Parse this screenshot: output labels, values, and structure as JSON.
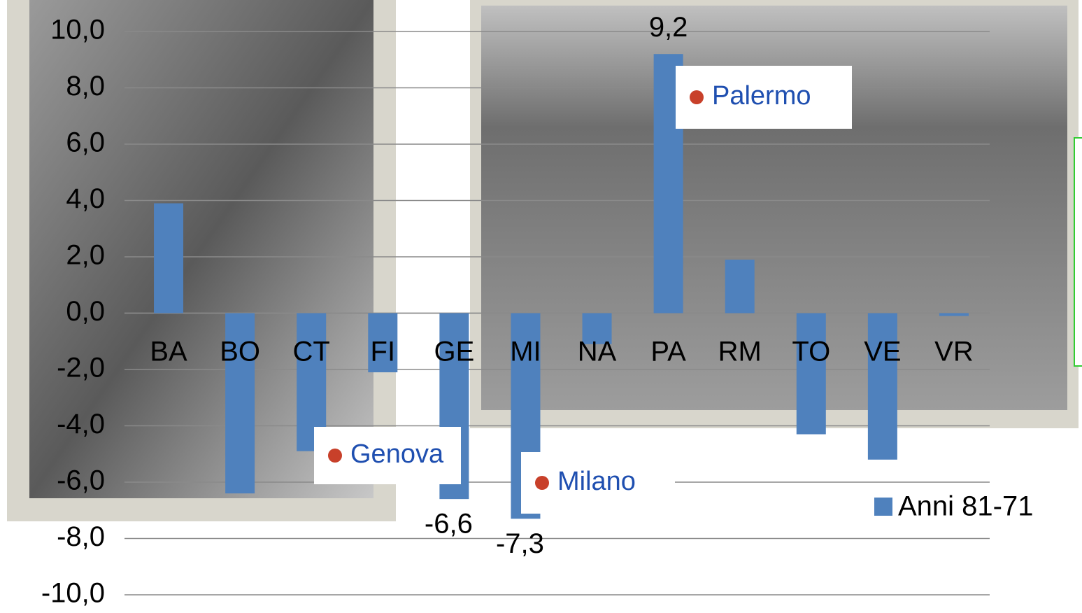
{
  "chart_data": {
    "type": "bar",
    "categories": [
      "BA",
      "BO",
      "CT",
      "FI",
      "GE",
      "MI",
      "NA",
      "PA",
      "RM",
      "TO",
      "VE",
      "VR"
    ],
    "series": [
      {
        "name": "Anni 81-71",
        "color": "#4f81bd",
        "values": [
          3.9,
          -6.4,
          -4.9,
          -2.1,
          -6.6,
          -7.3,
          -1.1,
          9.2,
          1.9,
          -4.3,
          -5.2,
          -0.1
        ],
        "value_labels": [
          null,
          null,
          null,
          null,
          "-6,6",
          "-7,3",
          null,
          "9,2",
          null,
          null,
          null,
          null
        ]
      }
    ],
    "ylim": [
      -10,
      10
    ],
    "yticks": [
      {
        "value": -10,
        "label": "-10,0"
      },
      {
        "value": -8,
        "label": "-8,0"
      },
      {
        "value": -6,
        "label": "-6,0"
      },
      {
        "value": -4,
        "label": "-4,0"
      },
      {
        "value": -2,
        "label": "-2,0"
      },
      {
        "value": 0,
        "label": "0,0"
      },
      {
        "value": 2,
        "label": "2,0"
      },
      {
        "value": 4,
        "label": "4,0"
      },
      {
        "value": 6,
        "label": "6,0"
      },
      {
        "value": 8,
        "label": "8,0"
      },
      {
        "value": 10,
        "label": "10,0"
      }
    ],
    "grid": true,
    "legend": "right",
    "annotations": [
      "Palermo",
      "Genova",
      "Milano"
    ]
  }
}
